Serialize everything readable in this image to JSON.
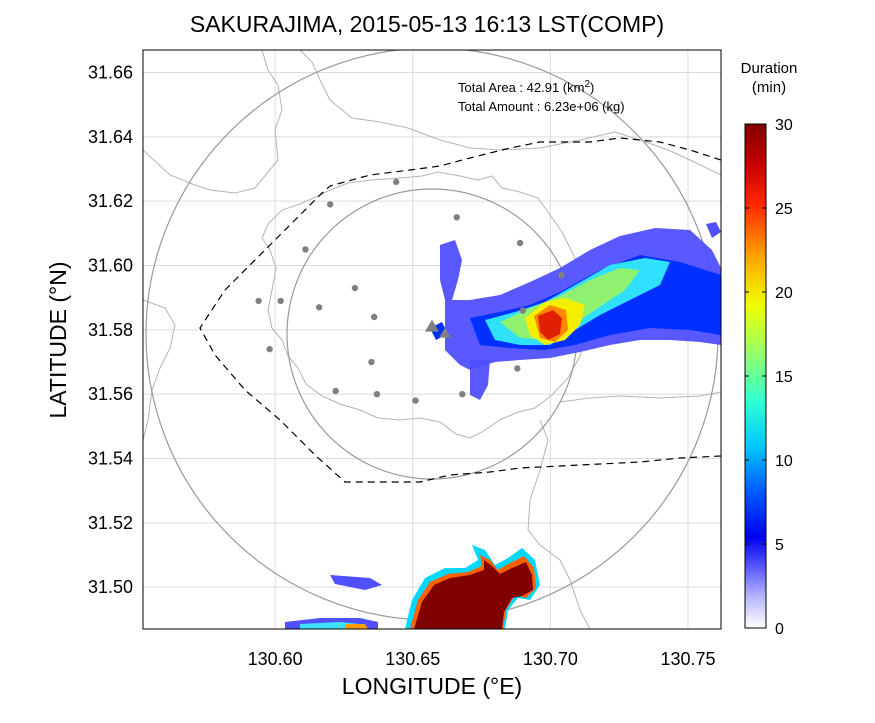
{
  "chart_data": {
    "type": "heatmap",
    "title": "SAKURAJIMA, 2015-05-13 16:13 LST(COMP)",
    "xlabel": "LONGITUDE (°E)",
    "ylabel": "LATITUDE (°N)",
    "xlim": [
      130.552,
      130.762
    ],
    "ylim": [
      31.487,
      31.667
    ],
    "x_ticks": [
      "130.60",
      "130.65",
      "130.70",
      "130.75"
    ],
    "x_tick_values": [
      130.6,
      130.65,
      130.7,
      130.75
    ],
    "y_ticks": [
      "31.50",
      "31.52",
      "31.54",
      "31.56",
      "31.58",
      "31.60",
      "31.62",
      "31.64",
      "31.66"
    ],
    "y_tick_values": [
      31.5,
      31.52,
      31.54,
      31.56,
      31.58,
      31.6,
      31.62,
      31.64,
      31.66
    ],
    "grid": true,
    "annotations": {
      "area_label": "Total Area   : 42.91 (km",
      "area_sup": "2",
      "area_close": ")",
      "amount": "Total Amount : 6.23e+06 (kg)"
    },
    "colorbar": {
      "title_line1": "Duration",
      "title_line2": "(min)",
      "range": [
        0,
        30
      ],
      "ticks": [
        "0",
        "5",
        "10",
        "15",
        "20",
        "25",
        "30"
      ],
      "colormap": "jet"
    },
    "vent": {
      "lon": 130.657,
      "lat": 31.581,
      "symbol": "triangle"
    },
    "stations": [
      [
        130.62,
        31.619
      ],
      [
        130.644,
        31.626
      ],
      [
        130.666,
        31.615
      ],
      [
        130.689,
        31.607
      ],
      [
        130.611,
        31.605
      ],
      [
        130.594,
        31.589
      ],
      [
        130.602,
        31.589
      ],
      [
        130.616,
        31.587
      ],
      [
        130.636,
        31.584
      ],
      [
        130.629,
        31.593
      ],
      [
        130.598,
        31.574
      ],
      [
        130.635,
        31.57
      ],
      [
        130.688,
        31.568
      ],
      [
        130.622,
        31.561
      ],
      [
        130.637,
        31.56
      ],
      [
        130.651,
        31.558
      ],
      [
        130.668,
        31.56
      ],
      [
        130.69,
        31.586
      ],
      [
        130.704,
        31.597
      ]
    ],
    "plume": [
      {
        "lon": 130.66,
        "lat": 31.595,
        "v": 5
      },
      {
        "lon": 130.672,
        "lat": 31.585,
        "v": 6
      },
      {
        "lon": 130.683,
        "lat": 31.584,
        "v": 9
      },
      {
        "lon": 130.692,
        "lat": 31.584,
        "v": 13
      },
      {
        "lon": 130.7,
        "lat": 31.582,
        "v": 22
      },
      {
        "lon": 130.712,
        "lat": 31.59,
        "v": 13
      },
      {
        "lon": 130.725,
        "lat": 31.595,
        "v": 12
      },
      {
        "lon": 130.74,
        "lat": 31.588,
        "v": 6
      },
      {
        "lon": 130.755,
        "lat": 31.585,
        "v": 4
      }
    ],
    "deposit_south": {
      "v": 30
    }
  }
}
